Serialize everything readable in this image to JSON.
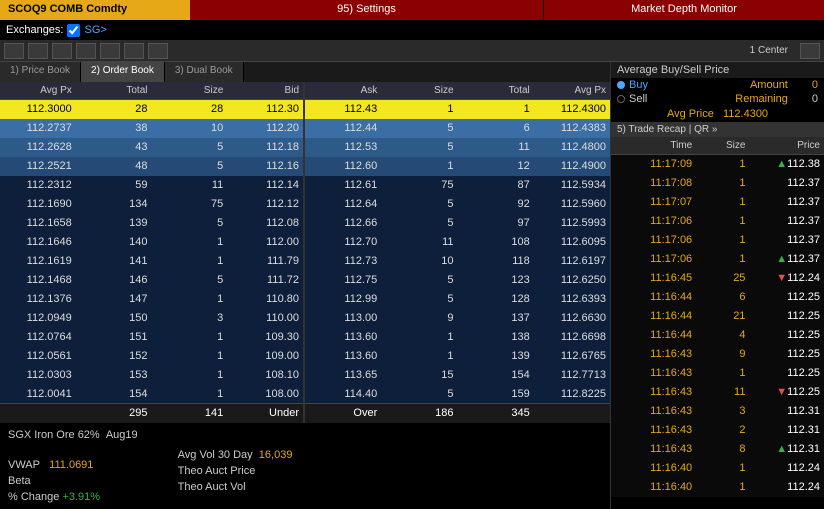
{
  "header": {
    "ticker": "SCOQ9 COMB Comdty",
    "settings": "95) Settings",
    "title": "Market Depth Monitor",
    "exchanges_label": "Exchanges:",
    "exchange_code": "SG>"
  },
  "toolbar": {
    "center_label": "1 Center"
  },
  "tabs": {
    "t1": "1) Price Book",
    "t2": "2) Order Book",
    "t3": "3) Dual Book"
  },
  "book": {
    "headers": {
      "avgpx": "Avg Px",
      "total": "Total",
      "size": "Size",
      "bid": "Bid",
      "ask": "Ask",
      "size2": "Size",
      "total2": "Total",
      "avgpx2": "Avg Px"
    },
    "bids": [
      {
        "avgpx": "112.3000",
        "total": "28",
        "size": "28",
        "bid": "112.30",
        "cls": "r0"
      },
      {
        "avgpx": "112.2737",
        "total": "38",
        "size": "10",
        "bid": "112.20",
        "cls": "r1"
      },
      {
        "avgpx": "112.2628",
        "total": "43",
        "size": "5",
        "bid": "112.18",
        "cls": "r2"
      },
      {
        "avgpx": "112.2521",
        "total": "48",
        "size": "5",
        "bid": "112.16",
        "cls": "r3"
      },
      {
        "avgpx": "112.2312",
        "total": "59",
        "size": "11",
        "bid": "112.14",
        "cls": "rn"
      },
      {
        "avgpx": "112.1690",
        "total": "134",
        "size": "75",
        "bid": "112.12",
        "cls": "rn"
      },
      {
        "avgpx": "112.1658",
        "total": "139",
        "size": "5",
        "bid": "112.08",
        "cls": "rn"
      },
      {
        "avgpx": "112.1646",
        "total": "140",
        "size": "1",
        "bid": "112.00",
        "cls": "rn"
      },
      {
        "avgpx": "112.1619",
        "total": "141",
        "size": "1",
        "bid": "111.79",
        "cls": "rn"
      },
      {
        "avgpx": "112.1468",
        "total": "146",
        "size": "5",
        "bid": "111.72",
        "cls": "rn"
      },
      {
        "avgpx": "112.1376",
        "total": "147",
        "size": "1",
        "bid": "110.80",
        "cls": "rn"
      },
      {
        "avgpx": "112.0949",
        "total": "150",
        "size": "3",
        "bid": "110.00",
        "cls": "rn"
      },
      {
        "avgpx": "112.0764",
        "total": "151",
        "size": "1",
        "bid": "109.30",
        "cls": "rn"
      },
      {
        "avgpx": "112.0561",
        "total": "152",
        "size": "1",
        "bid": "109.00",
        "cls": "rn"
      },
      {
        "avgpx": "112.0303",
        "total": "153",
        "size": "1",
        "bid": "108.10",
        "cls": "rn"
      },
      {
        "avgpx": "112.0041",
        "total": "154",
        "size": "1",
        "bid": "108.00",
        "cls": "rn"
      }
    ],
    "asks": [
      {
        "ask": "112.43",
        "size": "1",
        "total": "1",
        "avgpx": "112.4300",
        "cls": "r0"
      },
      {
        "ask": "112.44",
        "size": "5",
        "total": "6",
        "avgpx": "112.4383",
        "cls": "r1"
      },
      {
        "ask": "112.53",
        "size": "5",
        "total": "11",
        "avgpx": "112.4800",
        "cls": "r2"
      },
      {
        "ask": "112.60",
        "size": "1",
        "total": "12",
        "avgpx": "112.4900",
        "cls": "r3"
      },
      {
        "ask": "112.61",
        "size": "75",
        "total": "87",
        "avgpx": "112.5934",
        "cls": "rn"
      },
      {
        "ask": "112.64",
        "size": "5",
        "total": "92",
        "avgpx": "112.5960",
        "cls": "rn"
      },
      {
        "ask": "112.66",
        "size": "5",
        "total": "97",
        "avgpx": "112.5993",
        "cls": "rn"
      },
      {
        "ask": "112.70",
        "size": "11",
        "total": "108",
        "avgpx": "112.6095",
        "cls": "rn"
      },
      {
        "ask": "112.73",
        "size": "10",
        "total": "118",
        "avgpx": "112.6197",
        "cls": "rn"
      },
      {
        "ask": "112.75",
        "size": "5",
        "total": "123",
        "avgpx": "112.6250",
        "cls": "rn"
      },
      {
        "ask": "112.99",
        "size": "5",
        "total": "128",
        "avgpx": "112.6393",
        "cls": "rn"
      },
      {
        "ask": "113.00",
        "size": "9",
        "total": "137",
        "avgpx": "112.6630",
        "cls": "rn"
      },
      {
        "ask": "113.60",
        "size": "1",
        "total": "138",
        "avgpx": "112.6698",
        "cls": "rn"
      },
      {
        "ask": "113.60",
        "size": "1",
        "total": "139",
        "avgpx": "112.6765",
        "cls": "rn"
      },
      {
        "ask": "113.65",
        "size": "15",
        "total": "154",
        "avgpx": "112.7713",
        "cls": "rn"
      },
      {
        "ask": "114.40",
        "size": "5",
        "total": "159",
        "avgpx": "112.8225",
        "cls": "rn"
      }
    ],
    "summary": {
      "bid_total": "295",
      "bid_size": "141",
      "bid_label": "Under",
      "ask_label": "Over",
      "ask_size": "186",
      "ask_total": "345"
    }
  },
  "footer": {
    "instrument": "SGX Iron Ore 62%",
    "month": "Aug19",
    "vwap_label": "VWAP",
    "vwap": "111.0691",
    "beta_label": "Beta",
    "change_label": "% Change",
    "change": "+3.91%",
    "avg_vol_label": "Avg Vol 30 Day",
    "avg_vol": "16,039",
    "theo_price_label": "Theo Auct Price",
    "theo_vol_label": "Theo Auct Vol"
  },
  "side": {
    "title": "Average Buy/Sell Price",
    "buy": "Buy",
    "sell": "Sell",
    "amount_label": "Amount",
    "amount_val": "0",
    "remaining_label": "Remaining",
    "remaining_val": "0",
    "avg_price_label": "Avg Price",
    "avg_price_val": "112.4300",
    "recap_label": "5) Trade Recap | QR »",
    "headers": {
      "time": "Time",
      "size": "Size",
      "price": "Price"
    },
    "trades": [
      {
        "time": "11:17:09",
        "size": "1",
        "price": "112.38",
        "tick": "up"
      },
      {
        "time": "11:17:08",
        "size": "1",
        "price": "112.37",
        "tick": ""
      },
      {
        "time": "11:17:07",
        "size": "1",
        "price": "112.37",
        "tick": ""
      },
      {
        "time": "11:17:06",
        "size": "1",
        "price": "112.37",
        "tick": ""
      },
      {
        "time": "11:17:06",
        "size": "1",
        "price": "112.37",
        "tick": ""
      },
      {
        "time": "11:17:06",
        "size": "1",
        "price": "112.37",
        "tick": "up"
      },
      {
        "time": "11:16:45",
        "size": "25",
        "price": "112.24",
        "tick": "dn"
      },
      {
        "time": "11:16:44",
        "size": "6",
        "price": "112.25",
        "tick": ""
      },
      {
        "time": "11:16:44",
        "size": "21",
        "price": "112.25",
        "tick": ""
      },
      {
        "time": "11:16:44",
        "size": "4",
        "price": "112.25",
        "tick": ""
      },
      {
        "time": "11:16:43",
        "size": "9",
        "price": "112.25",
        "tick": ""
      },
      {
        "time": "11:16:43",
        "size": "1",
        "price": "112.25",
        "tick": ""
      },
      {
        "time": "11:16:43",
        "size": "11",
        "price": "112.25",
        "tick": "dn"
      },
      {
        "time": "11:16:43",
        "size": "3",
        "price": "112.31",
        "tick": ""
      },
      {
        "time": "11:16:43",
        "size": "2",
        "price": "112.31",
        "tick": ""
      },
      {
        "time": "11:16:43",
        "size": "8",
        "price": "112.31",
        "tick": "up"
      },
      {
        "time": "11:16:40",
        "size": "1",
        "price": "112.24",
        "tick": ""
      },
      {
        "time": "11:16:40",
        "size": "1",
        "price": "112.24",
        "tick": ""
      }
    ]
  }
}
